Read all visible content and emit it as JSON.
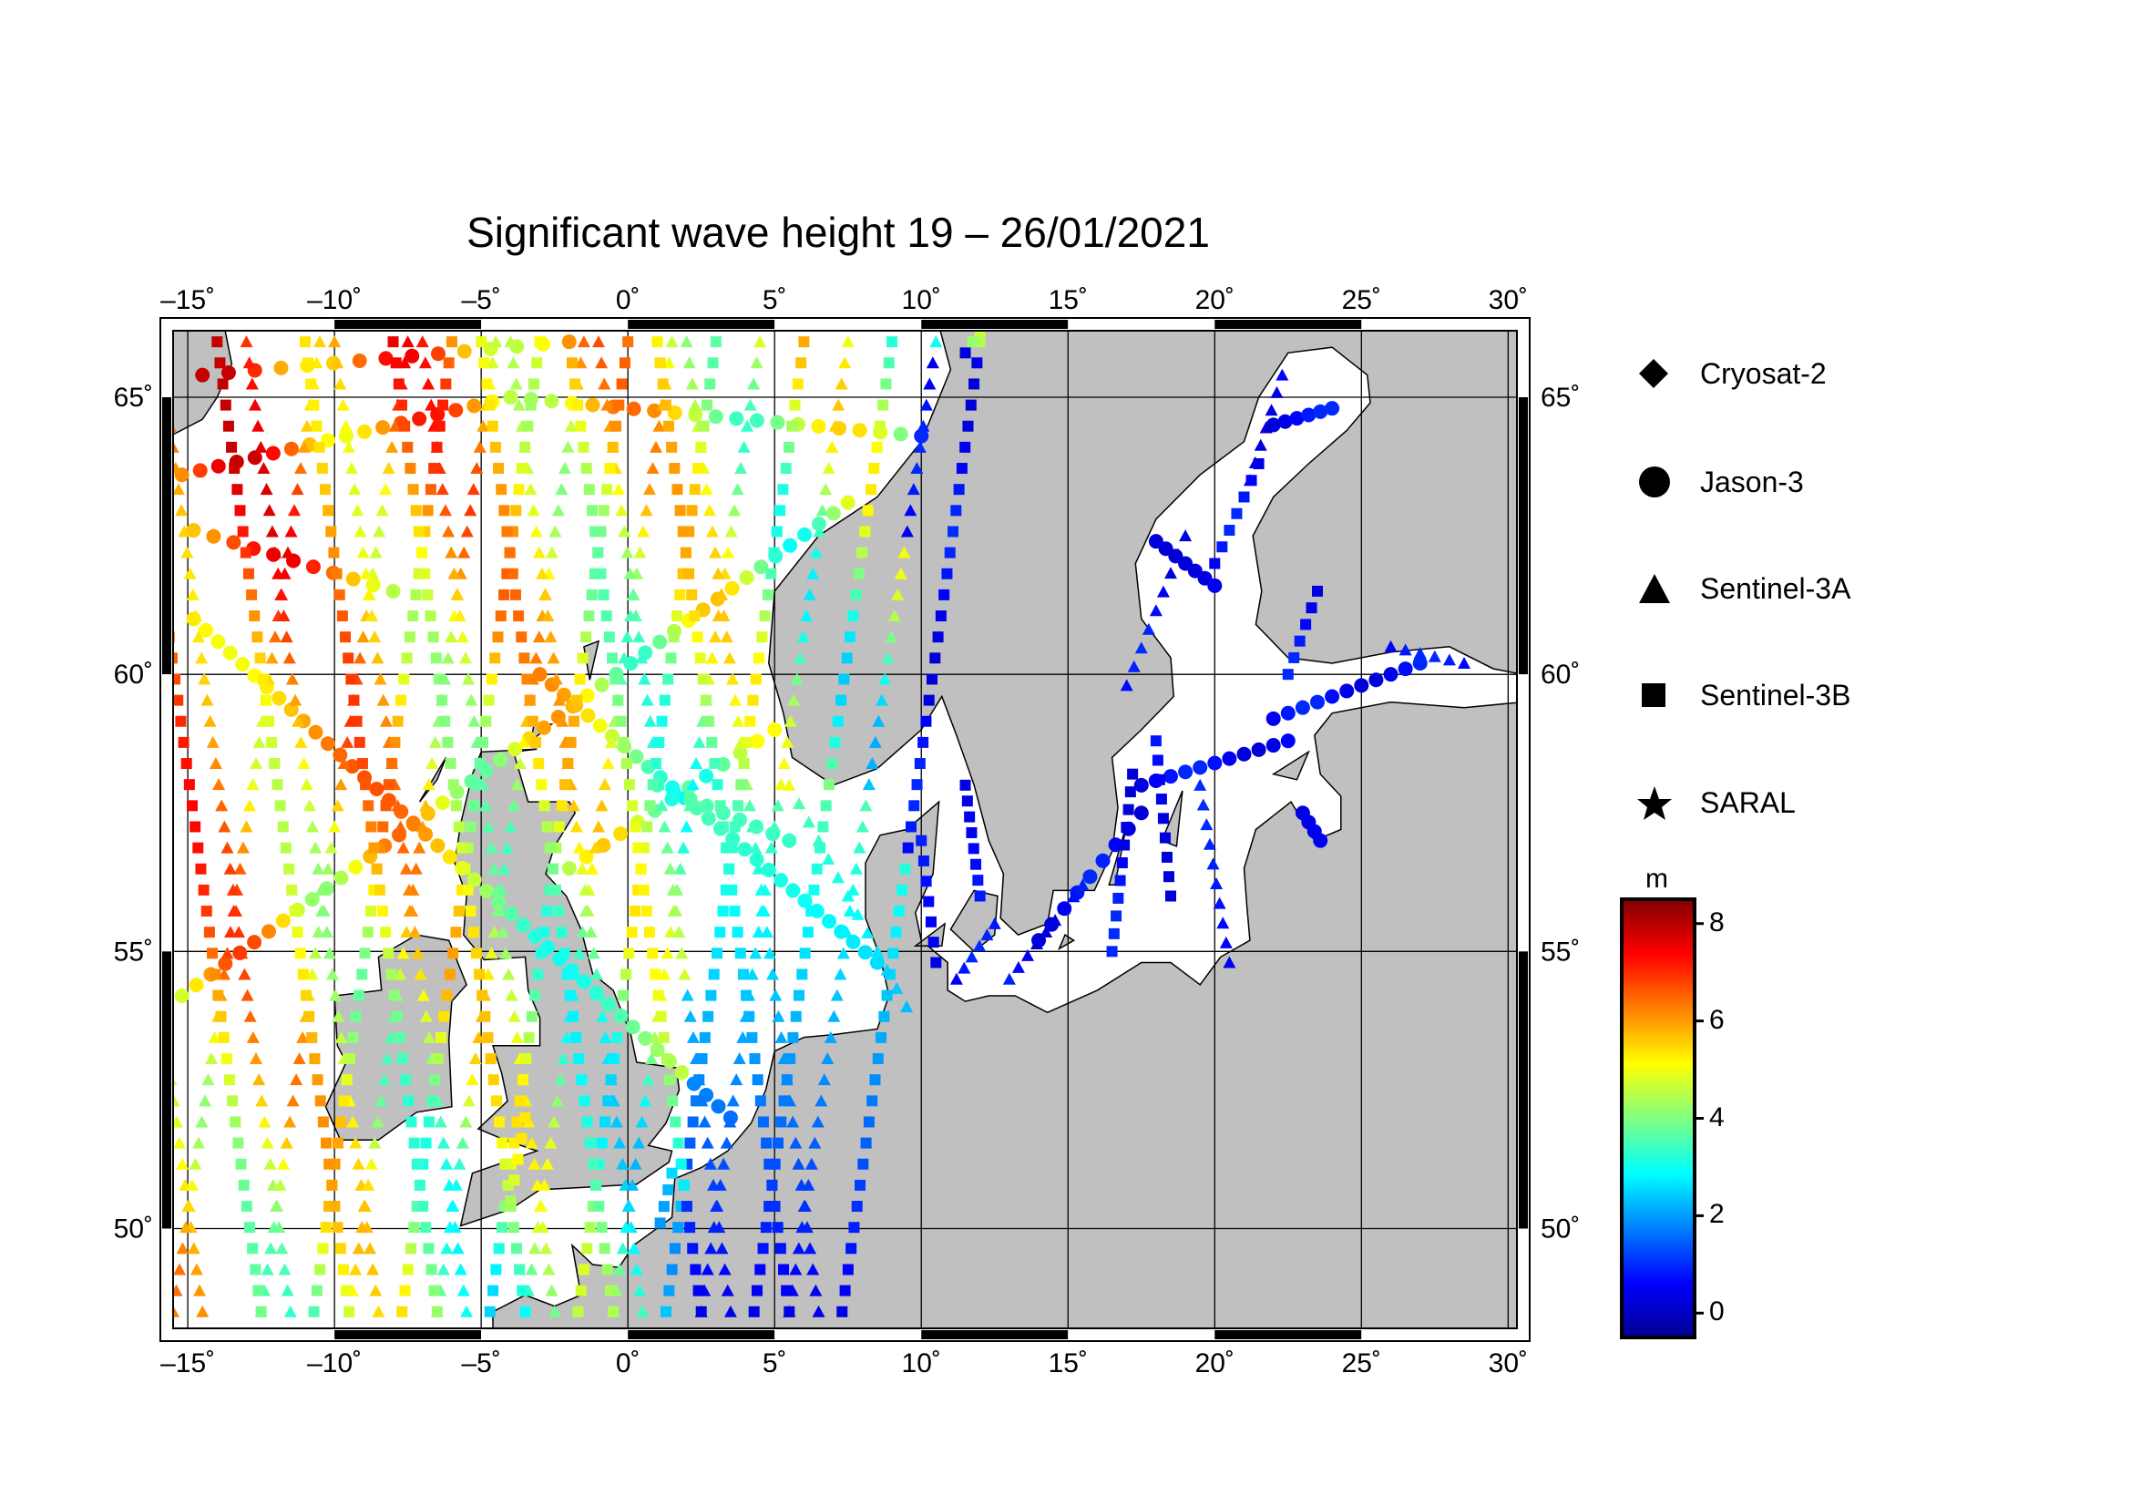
{
  "map": {
    "title": "Significant wave height 19 – 26/01/2021",
    "lon_ticks": [
      "–15˚",
      "–10˚",
      "–5˚",
      "0˚",
      "5˚",
      "10˚",
      "15˚",
      "20˚",
      "25˚",
      "30˚"
    ],
    "lat_ticks": [
      "65˚",
      "60˚",
      "55˚",
      "50˚"
    ],
    "land_color": "#c0c0c0",
    "sea_color": "#ffffff"
  },
  "legend": {
    "satellites": [
      {
        "name": "Cryosat-2",
        "symbol": "diamond"
      },
      {
        "name": "Jason-3",
        "symbol": "circle"
      },
      {
        "name": "Sentinel-3A",
        "symbol": "triangle"
      },
      {
        "name": "Sentinel-3B",
        "symbol": "square"
      },
      {
        "name": "SARAL",
        "symbol": "star"
      }
    ]
  },
  "colorbar": {
    "unit": "m",
    "ticks": [
      "8",
      "6",
      "4",
      "2",
      "0"
    ],
    "range": [
      -0.5,
      8.5
    ],
    "colormap": [
      "#00008f",
      "#0000ff",
      "#0080ff",
      "#00ffff",
      "#80ff80",
      "#ffff00",
      "#ff8000",
      "#ff0000",
      "#800000"
    ]
  }
}
